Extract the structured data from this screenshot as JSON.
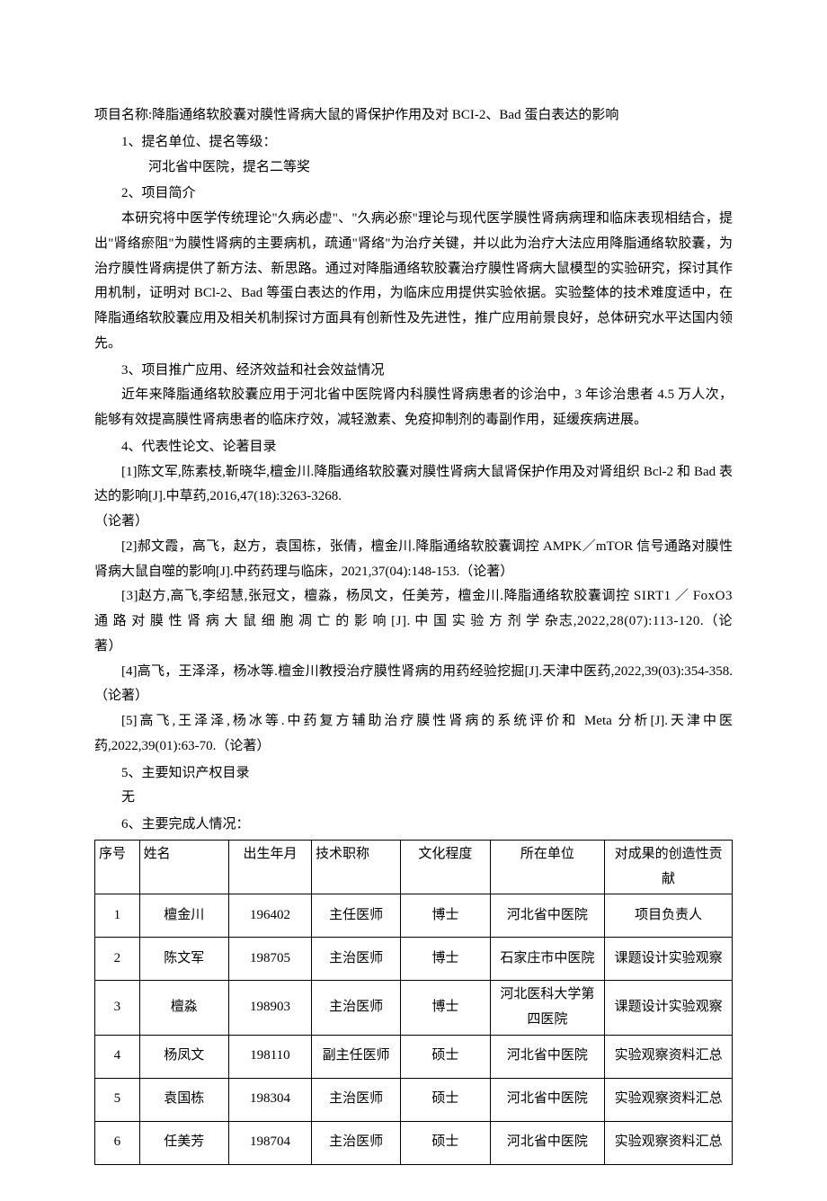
{
  "project_title_line": "项目名称:降脂通络软胶囊对膜性肾病大鼠的肾保护作用及对 BCI-2、Bad 蛋白表达的影响",
  "sections": {
    "s1_heading": "1、提名单位、提名等级：",
    "s1_nominator": "河北省中医院，提名二等奖",
    "s2_heading": "2、项目简介",
    "s2_p1": "本研究将中医学传统理论\"久病必虚\"、\"久病必瘀\"理论与现代医学膜性肾病病理和临床表现相结合，提出\"肾络瘀阻\"为膜性肾病的主要病机，疏通\"肾络\"为治疗关键，并以此为治疗大法应用降脂通络软胶囊，为治疗膜性肾病提供了新方法、新思路。通过对降脂通络软胶囊治疗膜性肾病大鼠模型的实验研究，探讨其作用机制，证明对 BCl-2、Bad 等蛋白表达的作用，为临床应用提供实验依据。实验整体的技术难度适中，在降脂通络软胶囊应用及相关机制探讨方面具有创新性及先进性，推广应用前景良好，总体研究水平达国内领先。",
    "s3_heading": "3、项目推广应用、经济效益和社会效益情况",
    "s3_p1": "近年来降脂通络软胶囊应用于河北省中医院肾内科膜性肾病患者的诊治中，3 年诊治患者 4.5 万人次，能够有效提高膜性肾病患者的临床疗效，减轻激素、免疫抑制剂的毒副作用，延缓疾病进展。",
    "s4_heading": "4、代表性论文、论著目录",
    "s4_ref1a": "[1]陈文军,陈素枝,靳晓华,檀金川.降脂通络软胶囊对膜性肾病大鼠肾保护作用及对肾组织 Bcl-2 和 Bad 表达的影响[J].中草药,2016,47(18):3263-3268.",
    "s4_ref1b": "（论著）",
    "s4_ref2": "[2]郝文霞，高飞，赵方，袁国栋，张倩，檀金川.降脂通络软胶囊调控 AMPK／mTOR 信号通路对膜性肾病大鼠自噬的影响[J].中药药理与临床，2021,37(04):148-153.（论著）",
    "s4_ref3": "[3]赵方,高飞,李绍慧,张冠文，檀淼，杨凤文，任美芳，檀金川.降脂通络软胶囊调控 SIRT1 ／ FoxO3 通 路 对 膜 性 肾 病 大 鼠 细 胞 凋 亡 的 影 响 [J]. 中 国 实 验 方 剂 学 杂志,2022,28(07):113-120.（论著）",
    "s4_ref4": "[4]高飞，王泽泽，杨冰等.檀金川教授治疗膜性肾病的用药经验挖掘[J].天津中医药,2022,39(03):354-358.（论著）",
    "s4_ref5": "[5]高飞,王泽泽,杨冰等.中药复方辅助治疗膜性肾病的系统评价和 Meta 分析[J].天津中医药,2022,39(01):63-70.（论著）",
    "s5_heading": "5、主要知识产权目录",
    "s5_p1": "无",
    "s6_heading": "6、主要完成人情况："
  },
  "table": {
    "headers": {
      "seq": "序号",
      "name": "姓名",
      "dob": "出生年月",
      "title": "技术职称",
      "edu": "文化程度",
      "unit": "所在单位",
      "contrib": "对成果的创造性贡献"
    },
    "rows": [
      {
        "seq": "1",
        "name": "檀金川",
        "dob": "196402",
        "title": "主任医师",
        "edu": "博士",
        "unit": "河北省中医院",
        "contrib": "项目负责人"
      },
      {
        "seq": "2",
        "name": "陈文军",
        "dob": "198705",
        "title": "主治医师",
        "edu": "博士",
        "unit": "石家庄市中医院",
        "contrib": "课题设计实验观察"
      },
      {
        "seq": "3",
        "name": "檀淼",
        "dob": "198903",
        "title": "主治医师",
        "edu": "博士",
        "unit": "河北医科大学第四医院",
        "contrib": "课题设计实验观察"
      },
      {
        "seq": "4",
        "name": "杨凤文",
        "dob": "198110",
        "title": "副主任医师",
        "edu": "硕士",
        "unit": "河北省中医院",
        "contrib": "实验观察资料汇总"
      },
      {
        "seq": "5",
        "name": "袁国栋",
        "dob": "198304",
        "title": "主治医师",
        "edu": "硕士",
        "unit": "河北省中医院",
        "contrib": "实验观察资料汇总"
      },
      {
        "seq": "6",
        "name": "任美芳",
        "dob": "198704",
        "title": "主治医师",
        "edu": "硕士",
        "unit": "河北省中医院",
        "contrib": "实验观察资料汇总"
      }
    ]
  }
}
